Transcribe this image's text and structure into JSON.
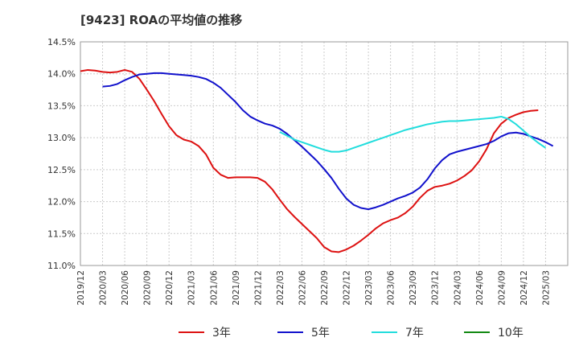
{
  "chart_data": {
    "type": "line",
    "title": "[9423]  ROAの平均値の推移",
    "xlabel": "",
    "ylabel": "",
    "ylim": [
      11.0,
      14.5
    ],
    "y_ticks": [
      "14.5%",
      "14.0%",
      "13.5%",
      "13.0%",
      "12.5%",
      "12.0%",
      "11.5%",
      "11.0%"
    ],
    "y_tick_values": [
      14.5,
      14.0,
      13.5,
      13.0,
      12.5,
      12.0,
      11.5,
      11.0
    ],
    "x_ticks": [
      "2019/12",
      "2020/03",
      "2020/06",
      "2020/09",
      "2020/12",
      "2021/03",
      "2021/06",
      "2021/09",
      "2021/12",
      "2022/03",
      "2022/06",
      "2022/09",
      "2022/12",
      "2023/03",
      "2023/06",
      "2023/09",
      "2023/12",
      "2024/03",
      "2024/06",
      "2024/09",
      "2024/12",
      "2025/03"
    ],
    "grid": true,
    "legend_position": "bottom",
    "series": [
      {
        "name": "3年",
        "color": "#dd1111",
        "start": "2019/12",
        "values": [
          14.04,
          14.06,
          14.05,
          14.03,
          14.02,
          14.03,
          14.06,
          14.03,
          13.92,
          13.75,
          13.57,
          13.37,
          13.18,
          13.04,
          12.97,
          12.94,
          12.87,
          12.74,
          12.53,
          12.42,
          12.37,
          12.38,
          12.38,
          12.38,
          12.37,
          12.31,
          12.19,
          12.03,
          11.88,
          11.76,
          11.65,
          11.54,
          11.43,
          11.29,
          11.22,
          11.21,
          11.25,
          11.31,
          11.39,
          11.48,
          11.58,
          11.66,
          11.71,
          11.75,
          11.82,
          11.92,
          12.06,
          12.17,
          12.23,
          12.25,
          12.28,
          12.33,
          12.4,
          12.49,
          12.63,
          12.82,
          13.07,
          13.22,
          13.31,
          13.36,
          13.4,
          13.42,
          13.43
        ]
      },
      {
        "name": "5年",
        "color": "#1111cc",
        "start": "2020/03",
        "values": [
          13.8,
          13.81,
          13.84,
          13.9,
          13.95,
          13.99,
          14.0,
          14.01,
          14.01,
          14.0,
          13.99,
          13.98,
          13.97,
          13.95,
          13.92,
          13.86,
          13.78,
          13.67,
          13.56,
          13.43,
          13.33,
          13.27,
          13.22,
          13.19,
          13.14,
          13.06,
          12.96,
          12.86,
          12.75,
          12.64,
          12.51,
          12.37,
          12.2,
          12.05,
          11.95,
          11.9,
          11.88,
          11.91,
          11.95,
          12.0,
          12.05,
          12.09,
          12.14,
          12.22,
          12.35,
          12.52,
          12.65,
          12.74,
          12.78,
          12.81,
          12.84,
          12.87,
          12.9,
          12.95,
          13.02,
          13.07,
          13.08,
          13.06,
          13.02,
          12.98,
          12.93,
          12.87
        ]
      },
      {
        "name": "7年",
        "color": "#22dddd",
        "start": "2022/03",
        "values": [
          13.09,
          13.03,
          12.97,
          12.93,
          12.89,
          12.85,
          12.81,
          12.78,
          12.78,
          12.8,
          12.84,
          12.88,
          12.92,
          12.96,
          13.0,
          13.04,
          13.08,
          13.12,
          13.15,
          13.18,
          13.21,
          13.23,
          13.25,
          13.26,
          13.26,
          13.27,
          13.28,
          13.29,
          13.3,
          13.31,
          13.33,
          13.29,
          13.21,
          13.11,
          13.01,
          12.92,
          12.84
        ]
      },
      {
        "name": "10年",
        "color": "#118811",
        "start": "",
        "values": []
      }
    ]
  }
}
